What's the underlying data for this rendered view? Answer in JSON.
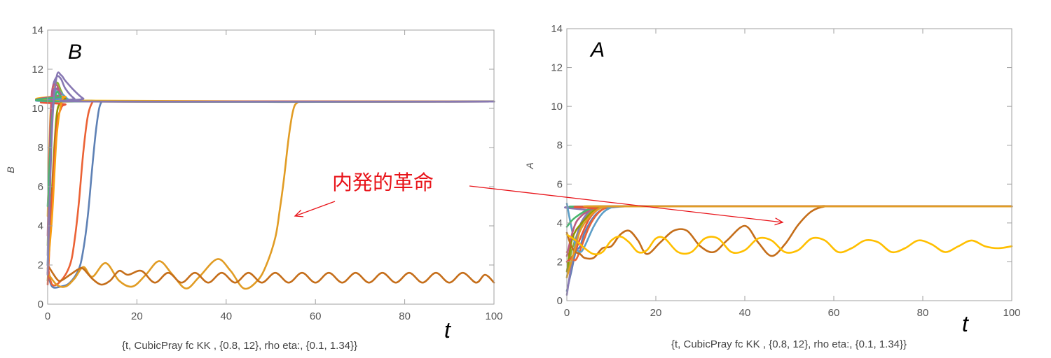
{
  "colors": {
    "annotation": "#e8141a",
    "frame": "#a0a0a0",
    "palette": [
      "#5e81b5",
      "#e19c24",
      "#8fb032",
      "#eb6235",
      "#8778b3",
      "#c56e1a",
      "#5d9ec7",
      "#ffbf00",
      "#a5609d",
      "#929600",
      "#e95536",
      "#6685d9",
      "#f89f13",
      "#bc5b80",
      "#47b66d"
    ]
  },
  "annotation": {
    "text": "内発的革命",
    "arrow_targets": [
      "B-panel late-revolution curve",
      "A-panel late-revolution curve"
    ]
  },
  "chart_data": [
    {
      "id": "panel-B",
      "type": "line",
      "panel_title": "B",
      "title": "",
      "xlabel": "t",
      "ylabel": "B",
      "caption": "{t, CubicPray fc KK , {0.8, 12},  rho eta:, {0.1, 1.34}}",
      "xlim": [
        0,
        100
      ],
      "ylim": [
        0,
        14
      ],
      "xticks": [
        0,
        20,
        40,
        60,
        80,
        100
      ],
      "yticks": [
        0,
        2,
        4,
        6,
        8,
        10,
        12,
        14
      ],
      "grid": false,
      "series": [
        {
          "color": "#5e81b5",
          "x": [
            0,
            1,
            3,
            5,
            7,
            8,
            9,
            10,
            11,
            12,
            14,
            100
          ],
          "y": [
            1.6,
            0.9,
            0.9,
            1.1,
            1.8,
            2.8,
            4.5,
            7.0,
            9.2,
            10.3,
            10.35,
            10.35
          ]
        },
        {
          "color": "#eb6235",
          "x": [
            0,
            1,
            3,
            5,
            6,
            7,
            8,
            9,
            10,
            11,
            13,
            100
          ],
          "y": [
            2.0,
            1.0,
            1.2,
            2.0,
            3.2,
            5.2,
            7.8,
            9.6,
            10.3,
            10.35,
            10.35,
            10.35
          ]
        },
        {
          "color": "#e19c24",
          "x": [
            0,
            2,
            4,
            6,
            8,
            10,
            13,
            16,
            19,
            22,
            25,
            28,
            31,
            34,
            38,
            41,
            44,
            47,
            49,
            51,
            52,
            53,
            54,
            55,
            56,
            58,
            100
          ],
          "y": [
            1.6,
            1.0,
            0.9,
            1.3,
            1.9,
            1.4,
            2.1,
            1.2,
            0.9,
            1.5,
            2.2,
            1.5,
            0.8,
            1.4,
            2.3,
            1.7,
            0.8,
            1.2,
            2.0,
            3.4,
            4.8,
            6.5,
            8.5,
            9.9,
            10.3,
            10.35,
            10.35
          ]
        },
        {
          "color": "#c56e1a",
          "x": [
            0,
            2,
            3,
            5,
            7,
            8,
            10,
            12,
            14,
            16,
            18,
            21,
            24,
            27,
            30,
            33,
            36,
            39,
            42,
            45,
            48,
            51,
            54,
            57,
            60,
            63,
            66,
            69,
            72,
            75,
            78,
            81,
            84,
            87,
            90,
            93,
            96,
            98,
            100
          ],
          "y": [
            2.0,
            1.3,
            1.2,
            1.5,
            1.8,
            1.8,
            1.3,
            1.0,
            1.2,
            1.7,
            1.5,
            1.7,
            1.1,
            1.6,
            1.1,
            1.6,
            1.1,
            1.6,
            1.1,
            1.6,
            1.1,
            1.6,
            1.1,
            1.6,
            1.1,
            1.6,
            1.1,
            1.6,
            1.1,
            1.6,
            1.1,
            1.6,
            1.1,
            1.6,
            1.1,
            1.6,
            1.1,
            1.5,
            1.1
          ]
        },
        {
          "color": "#8fb032",
          "x": [
            0,
            0.5,
            1,
            2,
            3,
            4,
            6,
            100
          ],
          "y": [
            3.0,
            7.5,
            10.2,
            11.3,
            10.9,
            10.5,
            10.35,
            10.35
          ]
        },
        {
          "color": "#8778b3",
          "x": [
            0,
            0.5,
            1,
            2,
            3,
            4,
            6,
            8,
            100
          ],
          "y": [
            2.5,
            8.0,
            10.8,
            11.6,
            11.5,
            11.0,
            10.5,
            10.35,
            10.35
          ]
        },
        {
          "color": "#5d9ec7",
          "x": [
            0,
            0.5,
            1,
            2,
            3,
            5,
            7,
            100
          ],
          "y": [
            2.0,
            7.0,
            10.0,
            11.0,
            10.8,
            10.4,
            10.35,
            10.35
          ]
        },
        {
          "color": "#ffbf00",
          "x": [
            0,
            0.5,
            1,
            2,
            3,
            5,
            100
          ],
          "y": [
            4.5,
            9.0,
            10.8,
            11.2,
            10.7,
            10.4,
            10.35
          ]
        },
        {
          "color": "#a5609d",
          "x": [
            0,
            0.5,
            1,
            2,
            3,
            5,
            100
          ],
          "y": [
            1.5,
            7.8,
            10.6,
            11.0,
            10.6,
            10.35,
            10.35
          ]
        },
        {
          "color": "#929600",
          "x": [
            0,
            1,
            2,
            3,
            4,
            6,
            100
          ],
          "y": [
            1.2,
            6.0,
            9.6,
            10.3,
            10.5,
            10.35,
            10.35
          ]
        },
        {
          "color": "#e95536",
          "x": [
            0,
            1,
            2,
            3,
            4,
            6,
            100
          ],
          "y": [
            1.0,
            5.5,
            9.0,
            10.0,
            10.2,
            10.35,
            10.35
          ]
        },
        {
          "color": "#6685d9",
          "x": [
            0,
            1,
            2,
            3,
            5,
            100
          ],
          "y": [
            2.0,
            9.5,
            10.6,
            10.5,
            10.35,
            10.35
          ]
        },
        {
          "color": "#f89f13",
          "x": [
            0,
            1,
            2,
            3,
            4,
            6,
            100
          ],
          "y": [
            1.8,
            4.5,
            8.5,
            10.2,
            10.6,
            10.35,
            10.35
          ]
        },
        {
          "color": "#bc5b80",
          "x": [
            0,
            0.5,
            1,
            2,
            3,
            5,
            100
          ],
          "y": [
            3.5,
            8.5,
            10.9,
            11.2,
            10.7,
            10.35,
            10.35
          ]
        },
        {
          "color": "#47b66d",
          "x": [
            0,
            1,
            2,
            3,
            5,
            100
          ],
          "y": [
            5.0,
            9.5,
            10.8,
            10.6,
            10.35,
            10.35
          ]
        },
        {
          "color": "#8778b3",
          "x": [
            0,
            1,
            2,
            3,
            4,
            6,
            8,
            10,
            100
          ],
          "y": [
            1.5,
            9.0,
            11.6,
            11.7,
            11.4,
            10.9,
            10.5,
            10.35,
            10.35
          ]
        }
      ]
    },
    {
      "id": "panel-A",
      "type": "line",
      "panel_title": "A",
      "title": "",
      "xlabel": "t",
      "ylabel": "A",
      "caption": "{t, CubicPray fc KK , {0.8, 12},  rho eta:, {0.1, 1.34}}",
      "xlim": [
        0,
        100
      ],
      "ylim": [
        0,
        14
      ],
      "xticks": [
        0,
        20,
        40,
        60,
        80,
        100
      ],
      "yticks": [
        0,
        2,
        4,
        6,
        8,
        10,
        12,
        14
      ],
      "grid": false,
      "series": [
        {
          "color": "#5e81b5",
          "x": [
            0,
            1,
            2,
            3,
            4,
            6,
            8,
            10,
            13,
            16,
            100
          ],
          "y": [
            0.5,
            1.5,
            2.5,
            2.8,
            3.5,
            4.3,
            4.7,
            4.8,
            4.85,
            4.85,
            4.85
          ]
        },
        {
          "color": "#eb6235",
          "x": [
            0,
            1,
            2,
            3,
            5,
            7,
            9,
            11,
            13,
            100
          ],
          "y": [
            2.5,
            2.2,
            2.1,
            2.6,
            3.8,
            4.5,
            4.8,
            4.85,
            4.85,
            4.85
          ]
        },
        {
          "color": "#8fb032",
          "x": [
            0,
            1,
            2,
            3,
            5,
            7,
            9,
            100
          ],
          "y": [
            1.2,
            2.5,
            3.2,
            3.8,
            4.5,
            4.8,
            4.85,
            4.85
          ]
        },
        {
          "color": "#8778b3",
          "x": [
            0,
            1,
            2,
            3,
            5,
            7,
            100
          ],
          "y": [
            0.3,
            1.8,
            3.0,
            3.9,
            4.6,
            4.85,
            4.85
          ]
        },
        {
          "color": "#5d9ec7",
          "x": [
            0,
            1,
            2,
            3,
            4,
            6,
            8,
            10,
            12,
            100
          ],
          "y": [
            5.0,
            3.8,
            2.8,
            2.5,
            2.8,
            3.8,
            4.5,
            4.8,
            4.85,
            4.85
          ]
        },
        {
          "color": "#929600",
          "x": [
            0,
            1,
            2,
            3,
            5,
            7,
            9,
            100
          ],
          "y": [
            1.5,
            3.0,
            3.6,
            3.9,
            4.4,
            4.75,
            4.85,
            4.85
          ]
        },
        {
          "color": "#bc5b80",
          "x": [
            0,
            1,
            2,
            3,
            4,
            6,
            8,
            100
          ],
          "y": [
            2.3,
            3.3,
            4.0,
            4.3,
            4.5,
            4.75,
            4.85,
            4.85
          ]
        },
        {
          "color": "#47b66d",
          "x": [
            0,
            1,
            2,
            4,
            6,
            8,
            100
          ],
          "y": [
            3.8,
            4.1,
            4.3,
            4.6,
            4.8,
            4.85,
            4.85
          ]
        },
        {
          "color": "#e95536",
          "x": [
            0,
            1,
            2,
            3,
            5,
            7,
            9,
            100
          ],
          "y": [
            2.0,
            2.2,
            2.6,
            3.2,
            4.2,
            4.7,
            4.85,
            4.85
          ]
        },
        {
          "color": "#c56e1a",
          "x": [
            0,
            1,
            2,
            3,
            4,
            6,
            8,
            10,
            12,
            14,
            16,
            18,
            21,
            24,
            27,
            30,
            33,
            36,
            40,
            43,
            46,
            49,
            52,
            55,
            58,
            61,
            100
          ],
          "y": [
            3.5,
            2.8,
            2.5,
            2.4,
            2.2,
            2.2,
            2.7,
            2.8,
            3.4,
            3.6,
            3.1,
            2.4,
            3.0,
            3.6,
            3.6,
            2.8,
            2.5,
            3.1,
            3.85,
            3.0,
            2.3,
            2.9,
            3.9,
            4.6,
            4.85,
            4.85,
            4.85
          ]
        },
        {
          "color": "#ffbf00",
          "x": [
            0,
            2,
            4,
            6,
            8,
            10,
            12,
            14,
            16,
            18,
            20,
            22,
            25,
            28,
            31,
            34,
            37,
            40,
            43,
            46,
            49,
            52,
            55,
            58,
            61,
            64,
            67,
            70,
            73,
            76,
            79,
            82,
            85,
            88,
            91,
            94,
            97,
            100
          ],
          "y": [
            3.4,
            3.1,
            2.7,
            2.4,
            2.5,
            3.1,
            3.3,
            3.0,
            2.5,
            2.6,
            3.2,
            3.2,
            2.5,
            2.5,
            3.2,
            3.2,
            2.5,
            2.6,
            3.2,
            3.1,
            2.5,
            2.6,
            3.2,
            3.1,
            2.5,
            2.7,
            3.1,
            3.0,
            2.5,
            2.7,
            3.1,
            2.9,
            2.5,
            2.8,
            3.1,
            2.8,
            2.7,
            2.8
          ]
        },
        {
          "color": "#e19c24",
          "x": [
            0,
            1,
            2,
            3,
            5,
            7,
            9,
            11,
            100
          ],
          "y": [
            1.2,
            2.0,
            2.8,
            3.6,
            4.3,
            4.7,
            4.85,
            4.85,
            4.85
          ]
        }
      ]
    }
  ]
}
